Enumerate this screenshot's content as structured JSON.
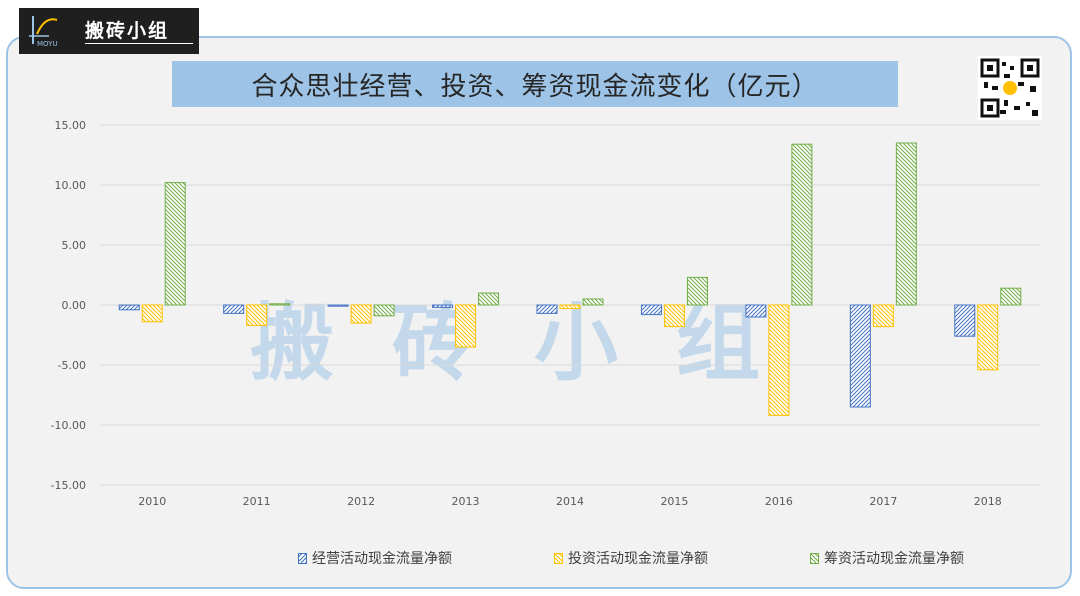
{
  "logo": {
    "brand": "搬砖小组",
    "sub": "MOYU"
  },
  "watermark": "搬砖小组",
  "chart_data": {
    "type": "bar",
    "title": "合众思壮经营、投资、筹资现金流变化（亿元）",
    "categories": [
      "2010",
      "2011",
      "2012",
      "2013",
      "2014",
      "2015",
      "2016",
      "2017",
      "2018"
    ],
    "series": [
      {
        "name": "经营活动现金流量净额",
        "color": "#4472c4",
        "values": [
          -0.4,
          -0.7,
          -0.1,
          -0.2,
          -0.7,
          -0.8,
          -1.0,
          -8.5,
          -2.6
        ]
      },
      {
        "name": "投资活动现金流量净额",
        "color": "#ffc000",
        "values": [
          -1.4,
          -1.7,
          -1.5,
          -3.5,
          -0.3,
          -1.8,
          -9.2,
          -1.8,
          -5.4
        ]
      },
      {
        "name": "筹资活动现金流量净额",
        "color": "#70ad47",
        "values": [
          10.2,
          0.1,
          -0.9,
          1.0,
          0.5,
          2.3,
          13.4,
          13.5,
          1.4
        ]
      }
    ],
    "yticks": [
      "15.00",
      "10.00",
      "5.00",
      "0.00",
      "-5.00",
      "-10.00",
      "-15.00"
    ],
    "ylim": [
      -15,
      15
    ],
    "grid": true,
    "legend_position": "bottom"
  }
}
